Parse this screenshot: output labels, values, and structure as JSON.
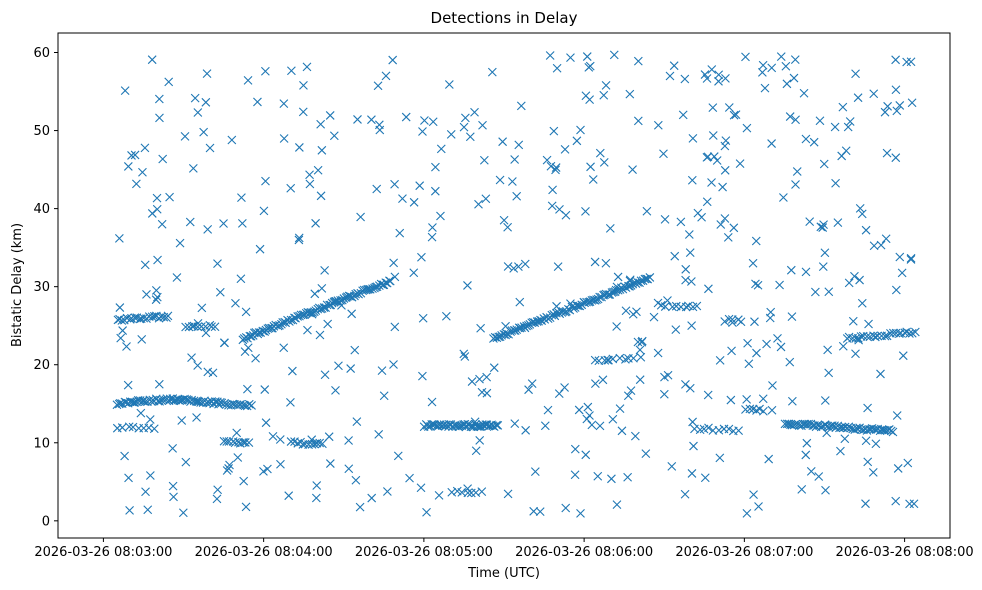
{
  "chart_data": {
    "type": "scatter",
    "title": "Detections in Delay",
    "xlabel": "Time (UTC)",
    "ylabel": "Bistatic Delay (km)",
    "xlim": [
      "2026-03-26 08:02:43",
      "2026-03-26 08:08:17"
    ],
    "ylim": [
      -2.2,
      62.5
    ],
    "grid": false,
    "legend": "none",
    "marker": "x",
    "color": "#1f77b4",
    "x_ticks": [
      "2026-03-26 08:03:00",
      "2026-03-26 08:04:00",
      "2026-03-26 08:05:00",
      "2026-03-26 08:06:00",
      "2026-03-26 08:07:00",
      "2026-03-26 08:08:00"
    ],
    "y_ticks": [
      "0",
      "10",
      "20",
      "30",
      "40",
      "50",
      "60"
    ],
    "tracks": [
      {
        "from": [
          "2026-03-26 08:03:05",
          15.0
        ],
        "to": [
          "2026-03-26 08:03:45",
          15.0
        ],
        "bulge": 0.5,
        "count": 60
      },
      {
        "from": [
          "2026-03-26 08:03:45",
          15.0
        ],
        "to": [
          "2026-03-26 08:03:56",
          14.8
        ],
        "count": 14
      },
      {
        "from": [
          "2026-03-26 08:03:52",
          23.3
        ],
        "to": [
          "2026-03-26 08:04:48",
          30.8
        ],
        "count": 90
      },
      {
        "from": [
          "2026-03-26 08:05:00",
          12.2
        ],
        "to": [
          "2026-03-26 08:05:28",
          12.2
        ],
        "count": 50
      },
      {
        "from": [
          "2026-03-26 08:05:26",
          23.3
        ],
        "to": [
          "2026-03-26 08:06:25",
          31.2
        ],
        "count": 95
      },
      {
        "from": [
          "2026-03-26 08:07:15",
          12.5
        ],
        "to": [
          "2026-03-26 08:07:56",
          11.5
        ],
        "count": 60
      },
      {
        "from": [
          "2026-03-26 08:07:38",
          23.4
        ],
        "to": [
          "2026-03-26 08:08:05",
          24.2
        ],
        "count": 25
      },
      {
        "from": [
          "2026-03-26 08:03:05",
          25.8
        ],
        "to": [
          "2026-03-26 08:03:25",
          26.2
        ],
        "count": 22
      },
      {
        "from": [
          "2026-03-26 08:03:30",
          25.0
        ],
        "to": [
          "2026-03-26 08:03:43",
          25.0
        ],
        "count": 10
      },
      {
        "from": [
          "2026-03-26 08:04:10",
          10.0
        ],
        "to": [
          "2026-03-26 08:04:23",
          9.8
        ],
        "count": 12
      },
      {
        "from": [
          "2026-03-26 08:03:45",
          10.1
        ],
        "to": [
          "2026-03-26 08:03:55",
          9.9
        ],
        "count": 10
      },
      {
        "from": [
          "2026-03-26 08:03:05",
          12.0
        ],
        "to": [
          "2026-03-26 08:03:20",
          11.8
        ],
        "count": 8
      },
      {
        "from": [
          "2026-03-26 08:06:03",
          20.6
        ],
        "to": [
          "2026-03-26 08:06:22",
          20.8
        ],
        "count": 10
      },
      {
        "from": [
          "2026-03-26 08:06:28",
          27.5
        ],
        "to": [
          "2026-03-26 08:06:44",
          27.6
        ],
        "count": 8
      },
      {
        "from": [
          "2026-03-26 08:06:41",
          11.8
        ],
        "to": [
          "2026-03-26 08:06:59",
          11.6
        ],
        "count": 10
      },
      {
        "from": [
          "2026-03-26 08:07:00",
          14.3
        ],
        "to": [
          "2026-03-26 08:07:08",
          14.1
        ],
        "count": 6
      },
      {
        "from": [
          "2026-03-26 08:06:52",
          25.7
        ],
        "to": [
          "2026-03-26 08:07:00",
          25.6
        ],
        "count": 5
      },
      {
        "from": [
          "2026-03-26 08:05:10",
          3.8
        ],
        "to": [
          "2026-03-26 08:05:21",
          3.6
        ],
        "count": 6
      }
    ],
    "clutter": {
      "from": "2026-03-26 08:03:05",
      "to": "2026-03-26 08:08:05",
      "delay_range": [
        0.6,
        59.8
      ],
      "count": 520
    }
  }
}
